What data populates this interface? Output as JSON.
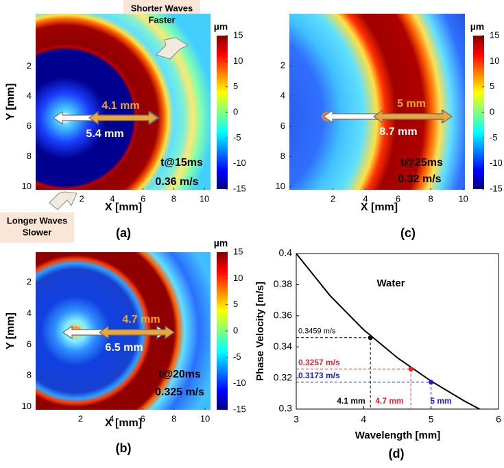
{
  "chart_data": [
    {
      "type": "heatmap",
      "panel_label": "(a)",
      "xlabel": "X [mm]",
      "ylabel": "Y [mm]",
      "xlim": [
        -1.0,
        10.4
      ],
      "ylim": [
        -1.5,
        10.2
      ],
      "xticks": [
        2,
        4,
        6,
        8,
        10
      ],
      "yticks": [
        2,
        4,
        6,
        8,
        10
      ],
      "colorbar": {
        "label": "µm",
        "clim": [
          -15,
          15
        ],
        "ticks": [
          15,
          10,
          5,
          0,
          -5,
          -10,
          -15
        ]
      },
      "annotations": {
        "arrow_orange": "4.1 mm",
        "arrow_white": "5.4 mm",
        "time": "t@15ms",
        "velocity": "0.36 m/s"
      },
      "callouts": [
        [
          "Shorter Waves",
          "Faster"
        ],
        [
          "Longer Waves",
          "Slower"
        ]
      ]
    },
    {
      "type": "heatmap",
      "panel_label": "(b)",
      "xlabel": "X [mm]",
      "ylabel": "Y [mm]",
      "xlim": [
        -0.88,
        10.35
      ],
      "ylim": [
        0.05,
        10.2
      ],
      "xticks": [
        2,
        4,
        6,
        8,
        10
      ],
      "yticks": [
        2,
        4,
        6,
        8,
        10
      ],
      "colorbar": {
        "label": "µm",
        "clim": [
          -15,
          15
        ],
        "ticks": [
          15,
          10,
          5,
          0,
          -5,
          -10,
          -15
        ]
      },
      "annotations": {
        "arrow_orange": "4.7 mm",
        "arrow_white": "6.5 mm",
        "time": "t@20ms",
        "velocity": "0.325 m/s"
      }
    },
    {
      "type": "heatmap",
      "panel_label": "(c)",
      "xlabel": "X [mm]",
      "ylabel": "Y [mm]",
      "xlim": [
        -0.67,
        10.1
      ],
      "ylim": [
        -1.45,
        10.2
      ],
      "xticks": [
        2,
        4,
        6,
        8,
        10
      ],
      "yticks": [
        2,
        4,
        6,
        8,
        10
      ],
      "colorbar": {
        "label": "µm",
        "clim": [
          -15,
          15
        ],
        "ticks": [
          15,
          10,
          5,
          0,
          -5,
          -10,
          -15
        ]
      },
      "annotations": {
        "arrow_orange": "5 mm",
        "arrow_white": "8.7 mm",
        "time": "t@25ms",
        "velocity": "0.32 m/s"
      }
    },
    {
      "type": "line",
      "panel_label": "(d)",
      "title": "Water",
      "xlabel": "Wavelength [mm]",
      "ylabel": "Phase Velocity [m/s]",
      "xlim": [
        3,
        6
      ],
      "ylim": [
        0.3,
        0.4
      ],
      "xticks": [
        3,
        4,
        5,
        6
      ],
      "yticks": [
        0.3,
        0.32,
        0.34,
        0.36,
        0.38,
        0.4
      ],
      "series": [
        {
          "color": "#000000",
          "x": [
            3,
            3.5,
            4,
            4.5,
            5,
            5.5,
            5.72
          ],
          "values": [
            0.4,
            0.373,
            0.351,
            0.333,
            0.318,
            0.305,
            0.3
          ]
        }
      ],
      "points": {
        "x": [
          4.1,
          4.7,
          5
        ],
        "values": [
          0.3459,
          0.3257,
          0.3173
        ],
        "value_labels": [
          "0.3459 m/s",
          "0.3257 m/s",
          "0.3173 m/s"
        ],
        "x_labels": [
          "4.1 mm",
          "4.7 mm",
          "5 mm"
        ],
        "colors": [
          "#000000",
          "#e8232a",
          "#1a1adb"
        ]
      }
    }
  ]
}
